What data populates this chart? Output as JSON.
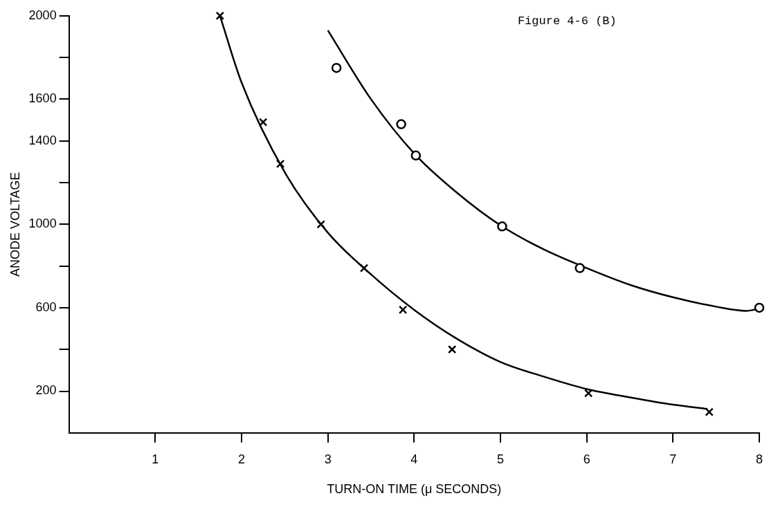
{
  "chart_data": {
    "type": "scatter",
    "xlabel": "TURN-ON TIME (μ SECONDS)",
    "ylabel": "ANODE VOLTAGE",
    "annotations": [
      "Figure 4-6 (B)"
    ],
    "xlim": [
      0,
      8
    ],
    "xticks": [
      1,
      2,
      3,
      4,
      5,
      6,
      7,
      8
    ],
    "ylim": [
      0,
      2000
    ],
    "yticks": [
      {
        "value": 200,
        "label": "200"
      },
      {
        "value": 400,
        "label": null
      },
      {
        "value": 600,
        "label": "600"
      },
      {
        "value": 800,
        "label": null
      },
      {
        "value": 1000,
        "label": "1000"
      },
      {
        "value": 1200,
        "label": null
      },
      {
        "value": 1400,
        "label": "1400"
      },
      {
        "value": 1600,
        "label": "1600"
      },
      {
        "value": 1800,
        "label": null
      },
      {
        "value": 2000,
        "label": "2000"
      }
    ],
    "grid": false,
    "legend": false,
    "series": [
      {
        "type": "scatter",
        "marker": "cross",
        "color": "#000000",
        "x": [
          1.75,
          2.25,
          2.45,
          2.92,
          3.42,
          3.87,
          4.44,
          6.02,
          7.42
        ],
        "values": [
          2000,
          1490,
          1290,
          1000,
          790,
          590,
          400,
          190,
          100
        ]
      },
      {
        "type": "scatter",
        "marker": "circle",
        "color": "#000000",
        "x": [
          3.1,
          3.85,
          4.02,
          5.02,
          5.92,
          8.0
        ],
        "values": [
          1750,
          1480,
          1330,
          990,
          790,
          600
        ]
      },
      {
        "type": "line",
        "marker": "none",
        "color": "#000000",
        "x": [
          1.75,
          2.0,
          2.5,
          3.0,
          3.5,
          4.0,
          4.5,
          5.0,
          5.5,
          6.0,
          6.5,
          7.0,
          7.4
        ],
        "values": [
          2000,
          1680,
          1250,
          960,
          760,
          590,
          450,
          340,
          270,
          210,
          170,
          135,
          115
        ]
      },
      {
        "type": "line",
        "marker": "none",
        "color": "#000000",
        "x": [
          3.0,
          3.5,
          4.0,
          4.5,
          5.0,
          5.5,
          6.0,
          6.5,
          7.0,
          7.5,
          7.85,
          8.0
        ],
        "values": [
          1930,
          1600,
          1340,
          1150,
          995,
          880,
          790,
          710,
          650,
          605,
          585,
          595
        ]
      }
    ]
  }
}
